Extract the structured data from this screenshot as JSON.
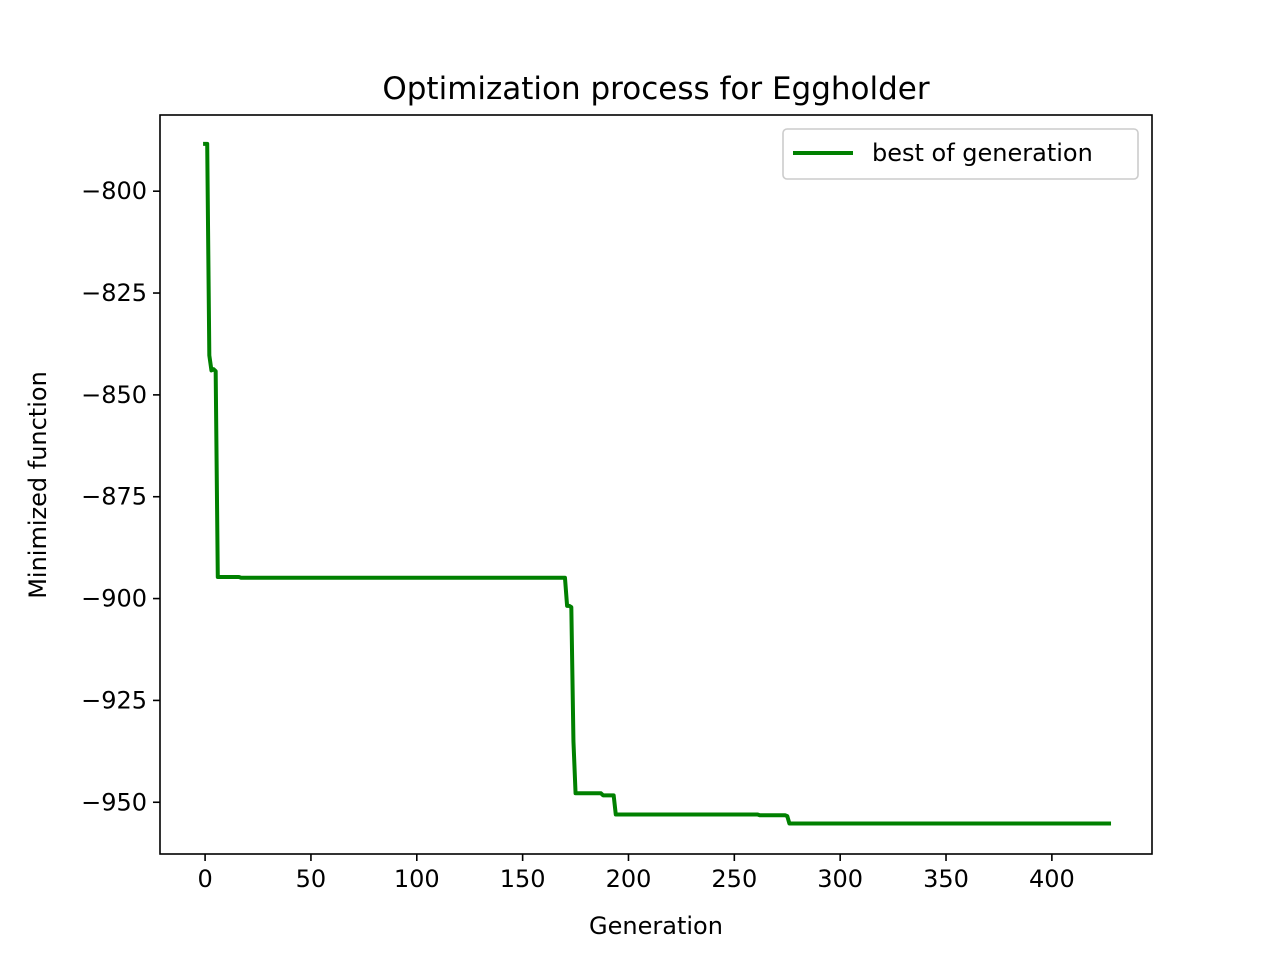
{
  "chart_data": {
    "type": "line",
    "title": "Optimization process for Eggholder",
    "xlabel": "Generation",
    "ylabel": "Minimized function",
    "xlim": [
      -21.3,
      447.3
    ],
    "ylim": [
      -962.7,
      -781.3
    ],
    "xticks": [
      0,
      50,
      100,
      150,
      200,
      250,
      300,
      350,
      400
    ],
    "yticks": [
      -800,
      -825,
      -850,
      -875,
      -900,
      -925,
      -950
    ],
    "xtick_labels": [
      "0",
      "50",
      "100",
      "150",
      "200",
      "250",
      "300",
      "350",
      "400"
    ],
    "ytick_labels": [
      "−800",
      "−825",
      "−850",
      "−875",
      "−900",
      "−925",
      "−950"
    ],
    "grid": false,
    "legend_position": "top-right",
    "series": [
      {
        "name": "best of generation",
        "color": "#008000",
        "x": [
          0,
          1,
          1,
          2,
          3,
          3,
          4,
          5,
          5,
          6,
          6,
          7,
          16,
          17,
          169,
          170,
          171,
          172,
          173,
          174,
          175,
          176,
          177,
          178,
          187,
          188,
          193,
          194,
          195,
          261,
          262,
          274,
          275,
          276,
          277,
          427
        ],
        "y": [
          -788.4,
          -788.4,
          -788.6,
          -840.3,
          -844.0,
          -844.0,
          -843.7,
          -844.2,
          -844.4,
          -894.7,
          -894.7,
          -894.7,
          -894.7,
          -894.9,
          -894.9,
          -894.9,
          -901.8,
          -901.8,
          -902.1,
          -935.0,
          -947.8,
          -947.8,
          -947.8,
          -947.8,
          -947.8,
          -948.3,
          -948.3,
          -953.0,
          -953.0,
          -953.0,
          -953.2,
          -953.2,
          -953.4,
          -955.2,
          -955.2,
          -955.2
        ]
      }
    ]
  }
}
